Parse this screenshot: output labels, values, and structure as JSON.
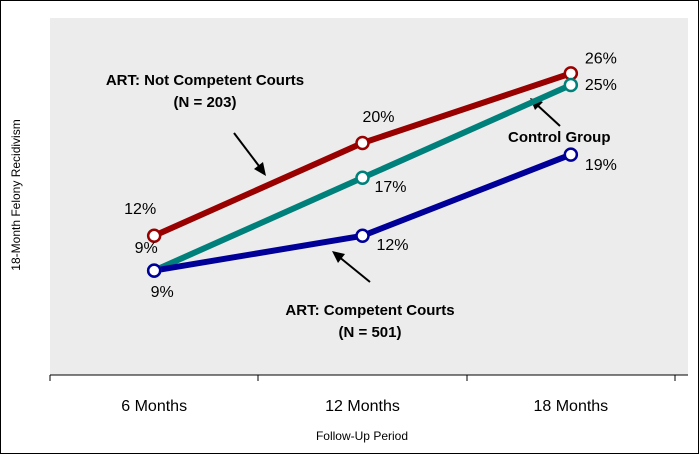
{
  "chart_data": {
    "type": "line",
    "x_label": "Follow-Up Period",
    "y_label": "18-Month Felony Recidivism",
    "categories": [
      "6 Months",
      "12 Months",
      "18 Months"
    ],
    "ylim": [
      0,
      30
    ],
    "series": [
      {
        "name": "ART: Not Competent Courts (N = 203)",
        "color": "#990000",
        "values": [
          12,
          20,
          26
        ],
        "value_labels": [
          "12%",
          "20%",
          "26%"
        ]
      },
      {
        "name": "Control Group",
        "color": "#00807a",
        "values": [
          9,
          17,
          25
        ],
        "value_labels": [
          "9%",
          "17%",
          "25%"
        ]
      },
      {
        "name": "ART: Competent Courts (N = 501)",
        "color": "#000099",
        "values": [
          9,
          12,
          19
        ],
        "value_labels": [
          "9%",
          "12%",
          "19%"
        ]
      }
    ]
  }
}
